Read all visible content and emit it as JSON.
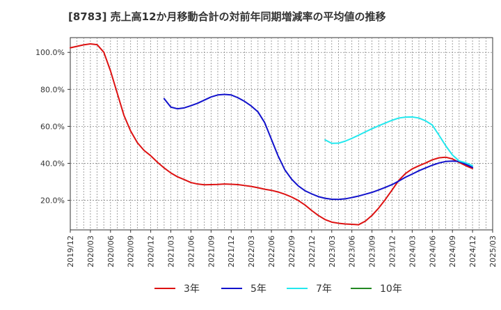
{
  "chart_data": {
    "type": "line",
    "title": "[8783]  売上高12か月移動合計の対前年同期増減率の平均値の推移",
    "xlabel": "",
    "ylabel": "",
    "x_ticks": [
      "2019/12",
      "2020/03",
      "2020/06",
      "2020/09",
      "2020/12",
      "2021/03",
      "2021/06",
      "2021/09",
      "2021/12",
      "2022/03",
      "2022/06",
      "2022/09",
      "2022/12",
      "2023/03",
      "2023/06",
      "2023/09",
      "2023/12",
      "2024/03",
      "2024/06",
      "2024/09",
      "2024/12",
      "2025/03"
    ],
    "y_ticks": [
      "20.0%",
      "40.0%",
      "60.0%",
      "80.0%",
      "100.0%"
    ],
    "y_tick_values": [
      20,
      40,
      60,
      80,
      100
    ],
    "ylim": [
      4,
      108
    ],
    "x_range": [
      "2019/12",
      "2025/03"
    ],
    "grid": true,
    "legend_position": "bottom",
    "series": [
      {
        "name": "3年",
        "color": "#dd1111",
        "points": [
          [
            "2019/12",
            102.5
          ],
          [
            "2020/01",
            103.3
          ],
          [
            "2020/02",
            104.1
          ],
          [
            "2020/03",
            104.6
          ],
          [
            "2020/04",
            104.2
          ],
          [
            "2020/05",
            100.1
          ],
          [
            "2020/06",
            90.0
          ],
          [
            "2020/07",
            78.0
          ],
          [
            "2020/08",
            66.0
          ],
          [
            "2020/09",
            57.5
          ],
          [
            "2020/10",
            51.2
          ],
          [
            "2020/11",
            47.0
          ],
          [
            "2020/12",
            44.1
          ],
          [
            "2021/01",
            40.6
          ],
          [
            "2021/02",
            37.5
          ],
          [
            "2021/03",
            34.8
          ],
          [
            "2021/04",
            32.7
          ],
          [
            "2021/05",
            31.2
          ],
          [
            "2021/06",
            29.6
          ],
          [
            "2021/07",
            28.8
          ],
          [
            "2021/08",
            28.4
          ],
          [
            "2021/09",
            28.5
          ],
          [
            "2021/10",
            28.6
          ],
          [
            "2021/11",
            28.8
          ],
          [
            "2021/12",
            28.7
          ],
          [
            "2022/01",
            28.5
          ],
          [
            "2022/02",
            28.0
          ],
          [
            "2022/03",
            27.5
          ],
          [
            "2022/04",
            26.8
          ],
          [
            "2022/05",
            26.0
          ],
          [
            "2022/06",
            25.4
          ],
          [
            "2022/07",
            24.5
          ],
          [
            "2022/08",
            23.3
          ],
          [
            "2022/09",
            21.8
          ],
          [
            "2022/10",
            19.9
          ],
          [
            "2022/11",
            17.5
          ],
          [
            "2022/12",
            14.5
          ],
          [
            "2023/01",
            11.8
          ],
          [
            "2023/02",
            9.6
          ],
          [
            "2023/03",
            8.2
          ],
          [
            "2023/04",
            7.6
          ],
          [
            "2023/05",
            7.2
          ],
          [
            "2023/06",
            7.0
          ],
          [
            "2023/07",
            6.8
          ],
          [
            "2023/08",
            8.7
          ],
          [
            "2023/09",
            11.8
          ],
          [
            "2023/10",
            15.8
          ],
          [
            "2023/11",
            20.5
          ],
          [
            "2023/12",
            25.6
          ],
          [
            "2024/01",
            30.8
          ],
          [
            "2024/02",
            34.5
          ],
          [
            "2024/03",
            37.0
          ],
          [
            "2024/04",
            38.7
          ],
          [
            "2024/05",
            40.2
          ],
          [
            "2024/06",
            41.9
          ],
          [
            "2024/07",
            43.0
          ],
          [
            "2024/08",
            43.3
          ],
          [
            "2024/09",
            42.4
          ],
          [
            "2024/10",
            40.5
          ],
          [
            "2024/11",
            38.7
          ],
          [
            "2024/12",
            37.2
          ]
        ]
      },
      {
        "name": "5年",
        "color": "#1111cc",
        "points": [
          [
            "2021/02",
            75.0
          ],
          [
            "2021/03",
            70.4
          ],
          [
            "2021/04",
            69.5
          ],
          [
            "2021/05",
            70.0
          ],
          [
            "2021/06",
            71.2
          ],
          [
            "2021/07",
            72.5
          ],
          [
            "2021/08",
            74.2
          ],
          [
            "2021/09",
            75.9
          ],
          [
            "2021/10",
            77.0
          ],
          [
            "2021/11",
            77.3
          ],
          [
            "2021/12",
            77.0
          ],
          [
            "2022/01",
            75.5
          ],
          [
            "2022/02",
            73.5
          ],
          [
            "2022/03",
            71.0
          ],
          [
            "2022/04",
            67.8
          ],
          [
            "2022/05",
            62.0
          ],
          [
            "2022/06",
            53.0
          ],
          [
            "2022/07",
            44.0
          ],
          [
            "2022/08",
            36.5
          ],
          [
            "2022/09",
            31.5
          ],
          [
            "2022/10",
            27.8
          ],
          [
            "2022/11",
            25.2
          ],
          [
            "2022/12",
            23.5
          ],
          [
            "2022/13",
            22.0
          ],
          [
            "2023/02",
            21.1
          ],
          [
            "2023/03",
            20.6
          ],
          [
            "2023/04",
            20.5
          ],
          [
            "2023/05",
            20.8
          ],
          [
            "2023/06",
            21.5
          ],
          [
            "2023/07",
            22.3
          ],
          [
            "2023/08",
            23.3
          ],
          [
            "2023/09",
            24.3
          ],
          [
            "2023/10",
            25.6
          ],
          [
            "2023/11",
            27.0
          ],
          [
            "2023/12",
            28.5
          ],
          [
            "2024/01",
            30.4
          ],
          [
            "2024/02",
            32.5
          ],
          [
            "2024/03",
            34.2
          ],
          [
            "2024/04",
            36.0
          ],
          [
            "2024/05",
            37.5
          ],
          [
            "2024/06",
            39.0
          ],
          [
            "2024/07",
            40.2
          ],
          [
            "2024/08",
            41.0
          ],
          [
            "2024/09",
            41.2
          ],
          [
            "2024/10",
            41.0
          ],
          [
            "2024/11",
            39.5
          ],
          [
            "2024/12",
            37.8
          ]
        ]
      },
      {
        "name": "7年",
        "color": "#22e8ee",
        "points": [
          [
            "2023/02",
            52.7
          ],
          [
            "2023/03",
            50.8
          ],
          [
            "2023/04",
            50.9
          ],
          [
            "2023/05",
            52.0
          ],
          [
            "2023/06",
            53.5
          ],
          [
            "2023/07",
            55.2
          ],
          [
            "2023/08",
            57.0
          ],
          [
            "2023/09",
            58.7
          ],
          [
            "2023/10",
            60.3
          ],
          [
            "2023/11",
            61.8
          ],
          [
            "2023/12",
            63.3
          ],
          [
            "2024/01",
            64.5
          ],
          [
            "2024/02",
            65.0
          ],
          [
            "2024/03",
            65.1
          ],
          [
            "2024/04",
            64.5
          ],
          [
            "2024/05",
            63.0
          ],
          [
            "2024/06",
            60.7
          ],
          [
            "2024/07",
            55.2
          ],
          [
            "2024/08",
            49.5
          ],
          [
            "2024/09",
            44.5
          ],
          [
            "2024/10",
            41.3
          ],
          [
            "2024/11",
            40.3
          ],
          [
            "2024/12",
            38.7
          ]
        ]
      },
      {
        "name": "10年",
        "color": "#228822",
        "points": []
      }
    ]
  }
}
